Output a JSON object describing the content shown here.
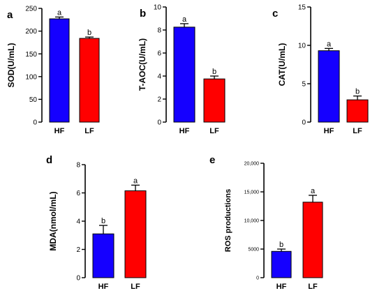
{
  "chart_data": [
    {
      "type": "bar",
      "panel_label": "a",
      "ylabel": "SOD(U/mL)",
      "categories": [
        "HF",
        "LF"
      ],
      "values": [
        227,
        184
      ],
      "errors": [
        4,
        3
      ],
      "sig_letters": [
        "a",
        "b"
      ],
      "colors": [
        "#1500ff",
        "#ff0000"
      ],
      "ylim": [
        0,
        250
      ],
      "yticks": [
        0,
        50,
        100,
        150,
        200,
        250
      ],
      "ytick_labels": [
        "0",
        "50",
        "100",
        "150",
        "200",
        "250"
      ]
    },
    {
      "type": "bar",
      "panel_label": "b",
      "ylabel": "T-AOC(U/mL)",
      "categories": [
        "HF",
        "LF"
      ],
      "values": [
        8.25,
        3.75
      ],
      "errors": [
        0.3,
        0.25
      ],
      "sig_letters": [
        "a",
        "b"
      ],
      "colors": [
        "#1500ff",
        "#ff0000"
      ],
      "ylim": [
        0,
        10
      ],
      "yticks": [
        0,
        2,
        4,
        6,
        8,
        10
      ],
      "ytick_labels": [
        "0",
        "2",
        "4",
        "6",
        "8",
        "10"
      ]
    },
    {
      "type": "bar",
      "panel_label": "c",
      "ylabel": "CAT(U/mL)",
      "categories": [
        "HF",
        "LF"
      ],
      "values": [
        9.3,
        2.9
      ],
      "errors": [
        0.3,
        0.5
      ],
      "sig_letters": [
        "a",
        "b"
      ],
      "colors": [
        "#1500ff",
        "#ff0000"
      ],
      "ylim": [
        0,
        15
      ],
      "yticks": [
        0,
        5,
        10,
        15
      ],
      "ytick_labels": [
        "0",
        "5",
        "10",
        "15"
      ]
    },
    {
      "type": "bar",
      "panel_label": "d",
      "ylabel": "MDA(nmol/mL)",
      "categories": [
        "HF",
        "LF"
      ],
      "values": [
        3.1,
        6.15
      ],
      "errors": [
        0.6,
        0.4
      ],
      "sig_letters": [
        "b",
        "a"
      ],
      "colors": [
        "#1500ff",
        "#ff0000"
      ],
      "ylim": [
        0,
        8
      ],
      "yticks": [
        0,
        2,
        4,
        6,
        8
      ],
      "ytick_labels": [
        "0",
        "2",
        "4",
        "6",
        "8"
      ]
    },
    {
      "type": "bar",
      "panel_label": "e",
      "ylabel": "ROS productions",
      "categories": [
        "HF",
        "LF"
      ],
      "values": [
        4600,
        13200
      ],
      "errors": [
        400,
        1200
      ],
      "sig_letters": [
        "b",
        "a"
      ],
      "colors": [
        "#1500ff",
        "#ff0000"
      ],
      "ylim": [
        0,
        20000
      ],
      "yticks": [
        0,
        5000,
        10000,
        15000,
        20000
      ],
      "ytick_labels": [
        "0",
        "5000",
        "10,000",
        "15,000",
        "20,000"
      ]
    }
  ]
}
